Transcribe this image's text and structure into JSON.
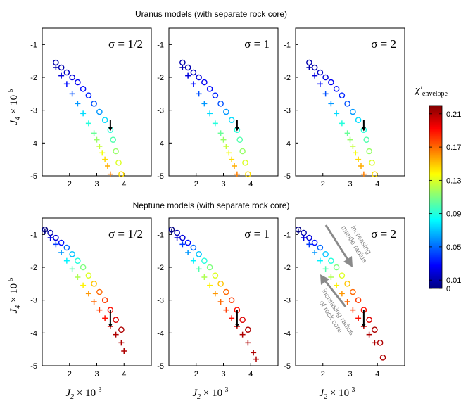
{
  "section_titles": {
    "uranus": "Uranus models (with separate rock core)",
    "neptune": "Neptune models (with separate rock core)"
  },
  "sigma_labels": [
    "σ = 1/2",
    "σ = 1",
    "σ = 2"
  ],
  "axis_labels": {
    "y_main": "J",
    "y_sub": "4",
    "y_mult": " × 10",
    "y_exp": "-5",
    "x_main": "J",
    "x_sub": "2",
    "x_mult": " × 10",
    "x_exp": "-3"
  },
  "colorbar": {
    "title_main": "χ′",
    "title_sub": "envelope",
    "ticks": [
      0,
      0.01,
      0.05,
      0.09,
      0.13,
      0.17,
      0.21
    ],
    "tick_labels": [
      "0",
      "0.01",
      "0.05",
      "0.09",
      "0.13",
      "0.17",
      "0.21"
    ],
    "range": [
      0,
      0.22
    ],
    "colormap": "jet"
  },
  "annotations": {
    "mantle_line1": "increasing",
    "mantle_line2": "mantle radius",
    "core_line1": "increasing radius",
    "core_line2": "of rock core",
    "arrow_color": "#8a8a8a"
  },
  "chart_data": [
    {
      "type": "scatter",
      "planet": "Uranus",
      "sigma_label": "σ = 1/2",
      "xlim": [
        1,
        5
      ],
      "ylim": [
        -5,
        -0.5
      ],
      "xticks": [
        2,
        3,
        4
      ],
      "yticks": [
        -1,
        -2,
        -3,
        -4,
        -5
      ],
      "observed_marker": {
        "x": 3.5,
        "y_top": -3.3,
        "y_bottom": -3.6
      },
      "series": [
        {
          "marker": "circle",
          "x": [
            1.5,
            1.7,
            1.9,
            2.1,
            2.3,
            2.5,
            2.7,
            2.9,
            3.1,
            3.3,
            3.5,
            3.6,
            3.7,
            3.8,
            3.9
          ],
          "y": [
            -1.55,
            -1.7,
            -1.85,
            -2.0,
            -2.15,
            -2.35,
            -2.55,
            -2.8,
            -3.05,
            -3.3,
            -3.6,
            -3.9,
            -4.25,
            -4.6,
            -4.95
          ],
          "value": [
            0.01,
            0.01,
            0.015,
            0.02,
            0.025,
            0.03,
            0.035,
            0.045,
            0.06,
            0.075,
            0.09,
            0.1,
            0.115,
            0.13,
            0.145
          ]
        },
        {
          "marker": "plus",
          "x": [
            1.5,
            1.7,
            1.9,
            2.1,
            2.3,
            2.5,
            2.7,
            2.9,
            3.0,
            3.1,
            3.2,
            3.3,
            3.4,
            3.5
          ],
          "y": [
            -1.7,
            -1.95,
            -2.2,
            -2.5,
            -2.8,
            -3.1,
            -3.4,
            -3.7,
            -3.9,
            -4.1,
            -4.3,
            -4.5,
            -4.7,
            -4.95
          ],
          "value": [
            0.01,
            0.02,
            0.03,
            0.045,
            0.06,
            0.075,
            0.09,
            0.105,
            0.115,
            0.125,
            0.135,
            0.145,
            0.155,
            0.165
          ]
        }
      ]
    },
    {
      "type": "scatter",
      "planet": "Uranus",
      "sigma_label": "σ = 1",
      "xlim": [
        1,
        5
      ],
      "ylim": [
        -5,
        -0.5
      ],
      "xticks": [
        2,
        3,
        4
      ],
      "yticks": [
        -1,
        -2,
        -3,
        -4,
        -5
      ],
      "observed_marker": {
        "x": 3.5,
        "y_top": -3.3,
        "y_bottom": -3.6
      },
      "series": [
        {
          "marker": "circle",
          "x": [
            1.5,
            1.7,
            1.9,
            2.1,
            2.3,
            2.5,
            2.7,
            2.9,
            3.1,
            3.3,
            3.5,
            3.6,
            3.7,
            3.8,
            3.9
          ],
          "y": [
            -1.55,
            -1.7,
            -1.85,
            -2.0,
            -2.15,
            -2.35,
            -2.55,
            -2.8,
            -3.05,
            -3.3,
            -3.6,
            -3.9,
            -4.25,
            -4.6,
            -4.95
          ],
          "value": [
            0.01,
            0.01,
            0.015,
            0.02,
            0.025,
            0.03,
            0.035,
            0.045,
            0.06,
            0.075,
            0.09,
            0.1,
            0.115,
            0.13,
            0.145
          ]
        },
        {
          "marker": "plus",
          "x": [
            1.5,
            1.7,
            1.9,
            2.1,
            2.3,
            2.5,
            2.7,
            2.9,
            3.0,
            3.1,
            3.2,
            3.3,
            3.4,
            3.5
          ],
          "y": [
            -1.7,
            -1.95,
            -2.2,
            -2.5,
            -2.8,
            -3.1,
            -3.4,
            -3.7,
            -3.9,
            -4.1,
            -4.3,
            -4.5,
            -4.7,
            -4.95
          ],
          "value": [
            0.01,
            0.02,
            0.03,
            0.045,
            0.06,
            0.075,
            0.09,
            0.105,
            0.115,
            0.125,
            0.135,
            0.145,
            0.155,
            0.165
          ]
        }
      ]
    },
    {
      "type": "scatter",
      "planet": "Uranus",
      "sigma_label": "σ = 2",
      "xlim": [
        1,
        5
      ],
      "ylim": [
        -5,
        -0.5
      ],
      "xticks": [
        2,
        3,
        4
      ],
      "yticks": [
        -1,
        -2,
        -3,
        -4,
        -5
      ],
      "observed_marker": {
        "x": 3.5,
        "y_top": -3.3,
        "y_bottom": -3.6
      },
      "series": [
        {
          "marker": "circle",
          "x": [
            1.5,
            1.7,
            1.9,
            2.1,
            2.3,
            2.5,
            2.7,
            2.9,
            3.1,
            3.3,
            3.5,
            3.6,
            3.7,
            3.8,
            3.9
          ],
          "y": [
            -1.55,
            -1.7,
            -1.85,
            -2.0,
            -2.15,
            -2.35,
            -2.55,
            -2.8,
            -3.05,
            -3.3,
            -3.6,
            -3.9,
            -4.25,
            -4.6,
            -4.95
          ],
          "value": [
            0.01,
            0.01,
            0.015,
            0.02,
            0.025,
            0.03,
            0.035,
            0.045,
            0.06,
            0.075,
            0.09,
            0.1,
            0.115,
            0.13,
            0.145
          ]
        },
        {
          "marker": "plus",
          "x": [
            1.5,
            1.7,
            1.9,
            2.1,
            2.3,
            2.5,
            2.7,
            2.9,
            3.0,
            3.1,
            3.2,
            3.3,
            3.4,
            3.5
          ],
          "y": [
            -1.7,
            -1.95,
            -2.2,
            -2.5,
            -2.8,
            -3.1,
            -3.4,
            -3.7,
            -3.9,
            -4.1,
            -4.3,
            -4.5,
            -4.7,
            -4.95
          ],
          "value": [
            0.01,
            0.02,
            0.03,
            0.045,
            0.06,
            0.075,
            0.09,
            0.105,
            0.115,
            0.125,
            0.135,
            0.145,
            0.155,
            0.165
          ]
        }
      ]
    },
    {
      "type": "scatter",
      "planet": "Neptune",
      "sigma_label": "σ = 1/2",
      "xlim": [
        1,
        5
      ],
      "ylim": [
        -5,
        -0.5
      ],
      "xticks": [
        2,
        3,
        4
      ],
      "yticks": [
        -1,
        -2,
        -3,
        -4,
        -5
      ],
      "observed_marker": {
        "x": 3.5,
        "y_top": -3.3,
        "y_bottom": -3.8
      },
      "series": [
        {
          "marker": "circle",
          "x": [
            1.1,
            1.3,
            1.5,
            1.7,
            1.9,
            2.1,
            2.3,
            2.5,
            2.7,
            2.9,
            3.1,
            3.3,
            3.5,
            3.7,
            3.9
          ],
          "y": [
            -0.85,
            -0.95,
            -1.1,
            -1.25,
            -1.4,
            -1.6,
            -1.8,
            -2.0,
            -2.25,
            -2.5,
            -2.75,
            -3.0,
            -3.3,
            -3.6,
            -3.9
          ],
          "value": [
            0.0,
            0.01,
            0.02,
            0.03,
            0.05,
            0.07,
            0.09,
            0.11,
            0.13,
            0.15,
            0.17,
            0.18,
            0.19,
            0.2,
            0.21
          ]
        },
        {
          "marker": "plus",
          "x": [
            1.1,
            1.3,
            1.5,
            1.7,
            1.9,
            2.1,
            2.3,
            2.5,
            2.7,
            2.9,
            3.1,
            3.3,
            3.5,
            3.7,
            3.9,
            4.0
          ],
          "y": [
            -0.9,
            -1.1,
            -1.3,
            -1.55,
            -1.8,
            -2.05,
            -2.3,
            -2.55,
            -2.8,
            -3.05,
            -3.3,
            -3.55,
            -3.8,
            -4.05,
            -4.3,
            -4.55
          ],
          "value": [
            0.0,
            0.02,
            0.04,
            0.06,
            0.08,
            0.1,
            0.12,
            0.14,
            0.16,
            0.17,
            0.18,
            0.19,
            0.2,
            0.21,
            0.21,
            0.21
          ]
        }
      ]
    },
    {
      "type": "scatter",
      "planet": "Neptune",
      "sigma_label": "σ = 1",
      "xlim": [
        1,
        5
      ],
      "ylim": [
        -5,
        -0.5
      ],
      "xticks": [
        2,
        3,
        4
      ],
      "yticks": [
        -1,
        -2,
        -3,
        -4,
        -5
      ],
      "observed_marker": {
        "x": 3.5,
        "y_top": -3.3,
        "y_bottom": -3.8
      },
      "series": [
        {
          "marker": "circle",
          "x": [
            1.1,
            1.3,
            1.5,
            1.7,
            1.9,
            2.1,
            2.3,
            2.5,
            2.7,
            2.9,
            3.1,
            3.3,
            3.5,
            3.7,
            3.9
          ],
          "y": [
            -0.85,
            -0.95,
            -1.1,
            -1.25,
            -1.4,
            -1.6,
            -1.8,
            -2.0,
            -2.25,
            -2.5,
            -2.75,
            -3.0,
            -3.3,
            -3.6,
            -3.9
          ],
          "value": [
            0.0,
            0.01,
            0.02,
            0.03,
            0.05,
            0.07,
            0.09,
            0.11,
            0.13,
            0.15,
            0.17,
            0.18,
            0.19,
            0.2,
            0.21
          ]
        },
        {
          "marker": "plus",
          "x": [
            1.1,
            1.3,
            1.5,
            1.7,
            1.9,
            2.1,
            2.3,
            2.5,
            2.7,
            2.9,
            3.1,
            3.3,
            3.5,
            3.7,
            3.9,
            4.1,
            4.2
          ],
          "y": [
            -0.9,
            -1.1,
            -1.3,
            -1.55,
            -1.8,
            -2.05,
            -2.3,
            -2.55,
            -2.8,
            -3.05,
            -3.3,
            -3.55,
            -3.8,
            -4.05,
            -4.3,
            -4.6,
            -4.8
          ],
          "value": [
            0.0,
            0.02,
            0.04,
            0.06,
            0.08,
            0.1,
            0.12,
            0.14,
            0.16,
            0.17,
            0.18,
            0.19,
            0.2,
            0.21,
            0.21,
            0.21,
            0.21
          ]
        }
      ]
    },
    {
      "type": "scatter",
      "planet": "Neptune",
      "sigma_label": "σ = 2",
      "xlim": [
        1,
        5
      ],
      "ylim": [
        -5,
        -0.5
      ],
      "xticks": [
        2,
        3,
        4
      ],
      "yticks": [
        -1,
        -2,
        -3,
        -4,
        -5
      ],
      "observed_marker": {
        "x": 3.5,
        "y_top": -3.3,
        "y_bottom": -3.8
      },
      "series": [
        {
          "marker": "circle",
          "x": [
            1.1,
            1.3,
            1.5,
            1.7,
            1.9,
            2.1,
            2.3,
            2.5,
            2.7,
            2.9,
            3.1,
            3.3,
            3.5,
            3.7,
            3.9,
            4.1,
            4.2
          ],
          "y": [
            -0.85,
            -0.95,
            -1.1,
            -1.25,
            -1.4,
            -1.6,
            -1.8,
            -2.0,
            -2.25,
            -2.5,
            -2.75,
            -3.0,
            -3.3,
            -3.6,
            -3.9,
            -4.3,
            -4.75
          ],
          "value": [
            0.0,
            0.01,
            0.02,
            0.03,
            0.05,
            0.07,
            0.09,
            0.11,
            0.13,
            0.15,
            0.17,
            0.18,
            0.19,
            0.2,
            0.21,
            0.21,
            0.21
          ]
        },
        {
          "marker": "plus",
          "x": [
            1.1,
            1.3,
            1.5,
            1.7,
            1.9,
            2.1,
            2.3,
            2.5,
            2.7,
            2.9,
            3.1,
            3.3,
            3.5,
            3.7,
            3.9
          ],
          "y": [
            -0.9,
            -1.1,
            -1.3,
            -1.55,
            -1.8,
            -2.05,
            -2.3,
            -2.55,
            -2.8,
            -3.05,
            -3.3,
            -3.55,
            -3.8,
            -4.05,
            -4.3
          ],
          "value": [
            0.0,
            0.02,
            0.04,
            0.06,
            0.08,
            0.1,
            0.12,
            0.14,
            0.16,
            0.17,
            0.18,
            0.19,
            0.2,
            0.21,
            0.21
          ]
        }
      ]
    }
  ]
}
